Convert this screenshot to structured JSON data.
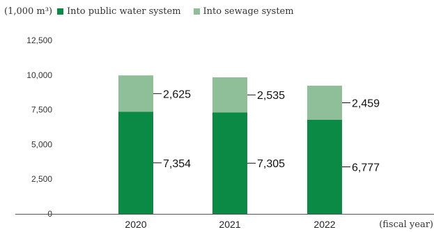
{
  "chart_data": {
    "type": "bar",
    "stacked": true,
    "unit_label": "(1,000 m³)",
    "xlabel": "(fiscal year)",
    "ylabel": "",
    "categories": [
      "2020",
      "2021",
      "2022"
    ],
    "series": [
      {
        "name": "Into public water system",
        "values": [
          7354,
          7305,
          6777
        ],
        "labels": [
          "7,354",
          "7,305",
          "6,777"
        ],
        "color": "#0b8a45"
      },
      {
        "name": "Into sewage system",
        "values": [
          2625,
          2535,
          2459
        ],
        "labels": [
          "2,625",
          "2,535",
          "2,459"
        ],
        "color": "#8fbf98"
      }
    ],
    "ylim": [
      0,
      12500
    ],
    "yticks": [
      0,
      2500,
      5000,
      7500,
      10000,
      12500
    ],
    "ytick_labels": [
      "0",
      "2,500",
      "5,000",
      "7,500",
      "10,000",
      "12,500"
    ],
    "grid": false,
    "legend_position": "top-left"
  }
}
